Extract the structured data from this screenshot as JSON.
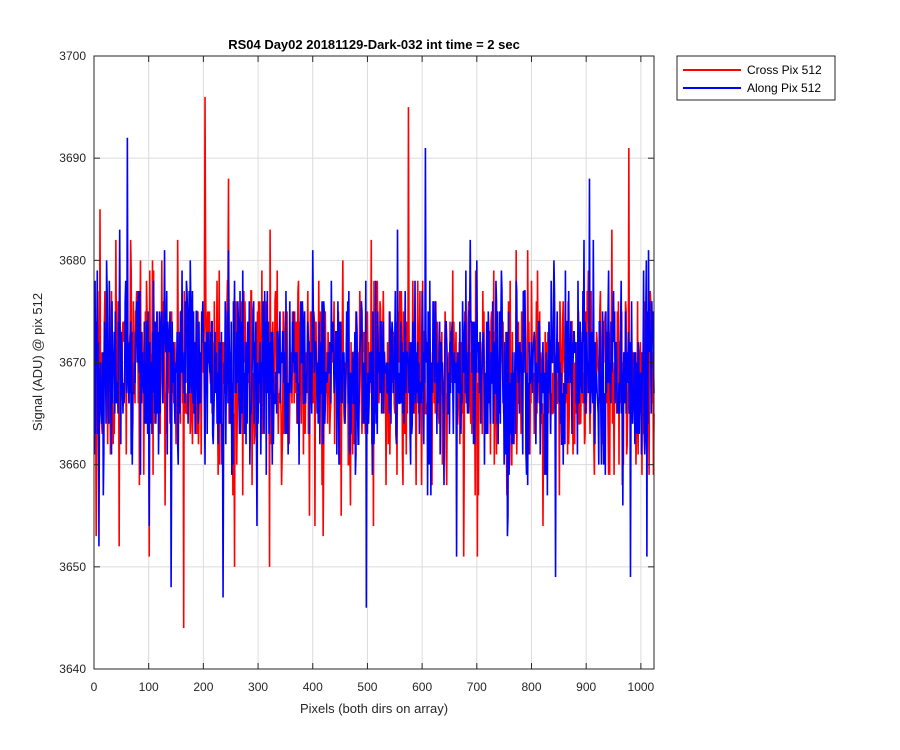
{
  "chart_data": {
    "type": "line",
    "title": "RS04 Day02 20181129-Dark-032 int time = 2 sec",
    "xlabel": "Pixels (both dirs on array)",
    "ylabel": "Signal (ADU) @ pix 512",
    "xlim": [
      0,
      1024
    ],
    "ylim": [
      3640,
      3700
    ],
    "xticks": [
      0,
      100,
      200,
      300,
      400,
      500,
      600,
      700,
      800,
      900,
      1000
    ],
    "yticks": [
      3640,
      3650,
      3660,
      3670,
      3680,
      3690,
      3700
    ],
    "grid": true,
    "legend_position": "outside-top-right",
    "series": [
      {
        "name": "Cross Pix 512",
        "color": "#ff0000",
        "mean": 3669,
        "spread": 4.8,
        "seed": 17,
        "notable_points": [
          {
            "x": 3,
            "y": 3653
          },
          {
            "x": 10,
            "y": 3685
          },
          {
            "x": 45,
            "y": 3652
          },
          {
            "x": 100,
            "y": 3651
          },
          {
            "x": 163,
            "y": 3644
          },
          {
            "x": 202,
            "y": 3696
          },
          {
            "x": 245,
            "y": 3688
          },
          {
            "x": 256,
            "y": 3650
          },
          {
            "x": 320,
            "y": 3650
          },
          {
            "x": 403,
            "y": 3654
          },
          {
            "x": 418,
            "y": 3653
          },
          {
            "x": 574,
            "y": 3695
          },
          {
            "x": 675,
            "y": 3651
          },
          {
            "x": 700,
            "y": 3651
          },
          {
            "x": 820,
            "y": 3654
          },
          {
            "x": 977,
            "y": 3691
          }
        ]
      },
      {
        "name": "Along Pix 512",
        "color": "#0000ff",
        "mean": 3669,
        "spread": 4.8,
        "seed": 91,
        "notable_points": [
          {
            "x": 8,
            "y": 3652
          },
          {
            "x": 60,
            "y": 3692
          },
          {
            "x": 140,
            "y": 3648
          },
          {
            "x": 235,
            "y": 3647
          },
          {
            "x": 497,
            "y": 3646
          },
          {
            "x": 605,
            "y": 3691
          },
          {
            "x": 662,
            "y": 3651
          },
          {
            "x": 755,
            "y": 3653
          },
          {
            "x": 843,
            "y": 3649
          },
          {
            "x": 905,
            "y": 3688
          },
          {
            "x": 980,
            "y": 3649
          },
          {
            "x": 1010,
            "y": 3651
          }
        ]
      }
    ]
  }
}
